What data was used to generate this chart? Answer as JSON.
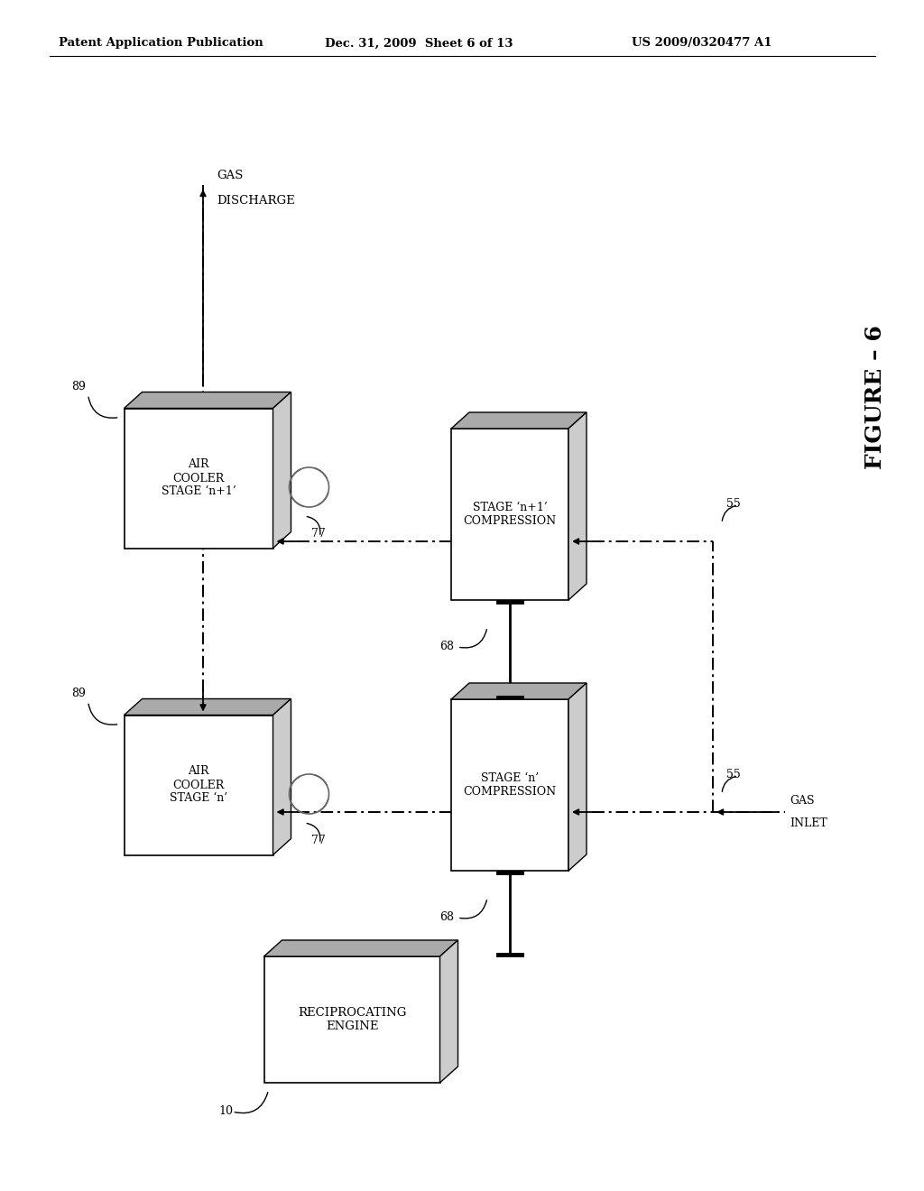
{
  "header_left": "Patent Application Publication",
  "header_mid": "Dec. 31, 2009  Sheet 6 of 13",
  "header_right": "US 2009/0320477 A1",
  "figure_label": "FIGURE – 6",
  "bg": "#ffffff",
  "engine_label": "RECIPROCATING\nENGINE",
  "comp_n_label": "STAGE ‘n’\nCOMPRESSION",
  "comp_n1_label": "STAGE ‘n+1’\nCOMPRESSION",
  "cooler_n_label": "AIR\nCOOLER\nSTAGE ‘n’",
  "cooler_n1_label": "AIR\nCOOLER\nSTAGE ‘n+1’",
  "ref_10": "10",
  "ref_55": "55",
  "ref_68": "68",
  "ref_77": "77",
  "ref_89": "89",
  "gas_discharge_1": "GAS",
  "gas_discharge_2": "DISCHARGE",
  "gas_inlet_1": "GAS",
  "gas_inlet_2": "INLET"
}
